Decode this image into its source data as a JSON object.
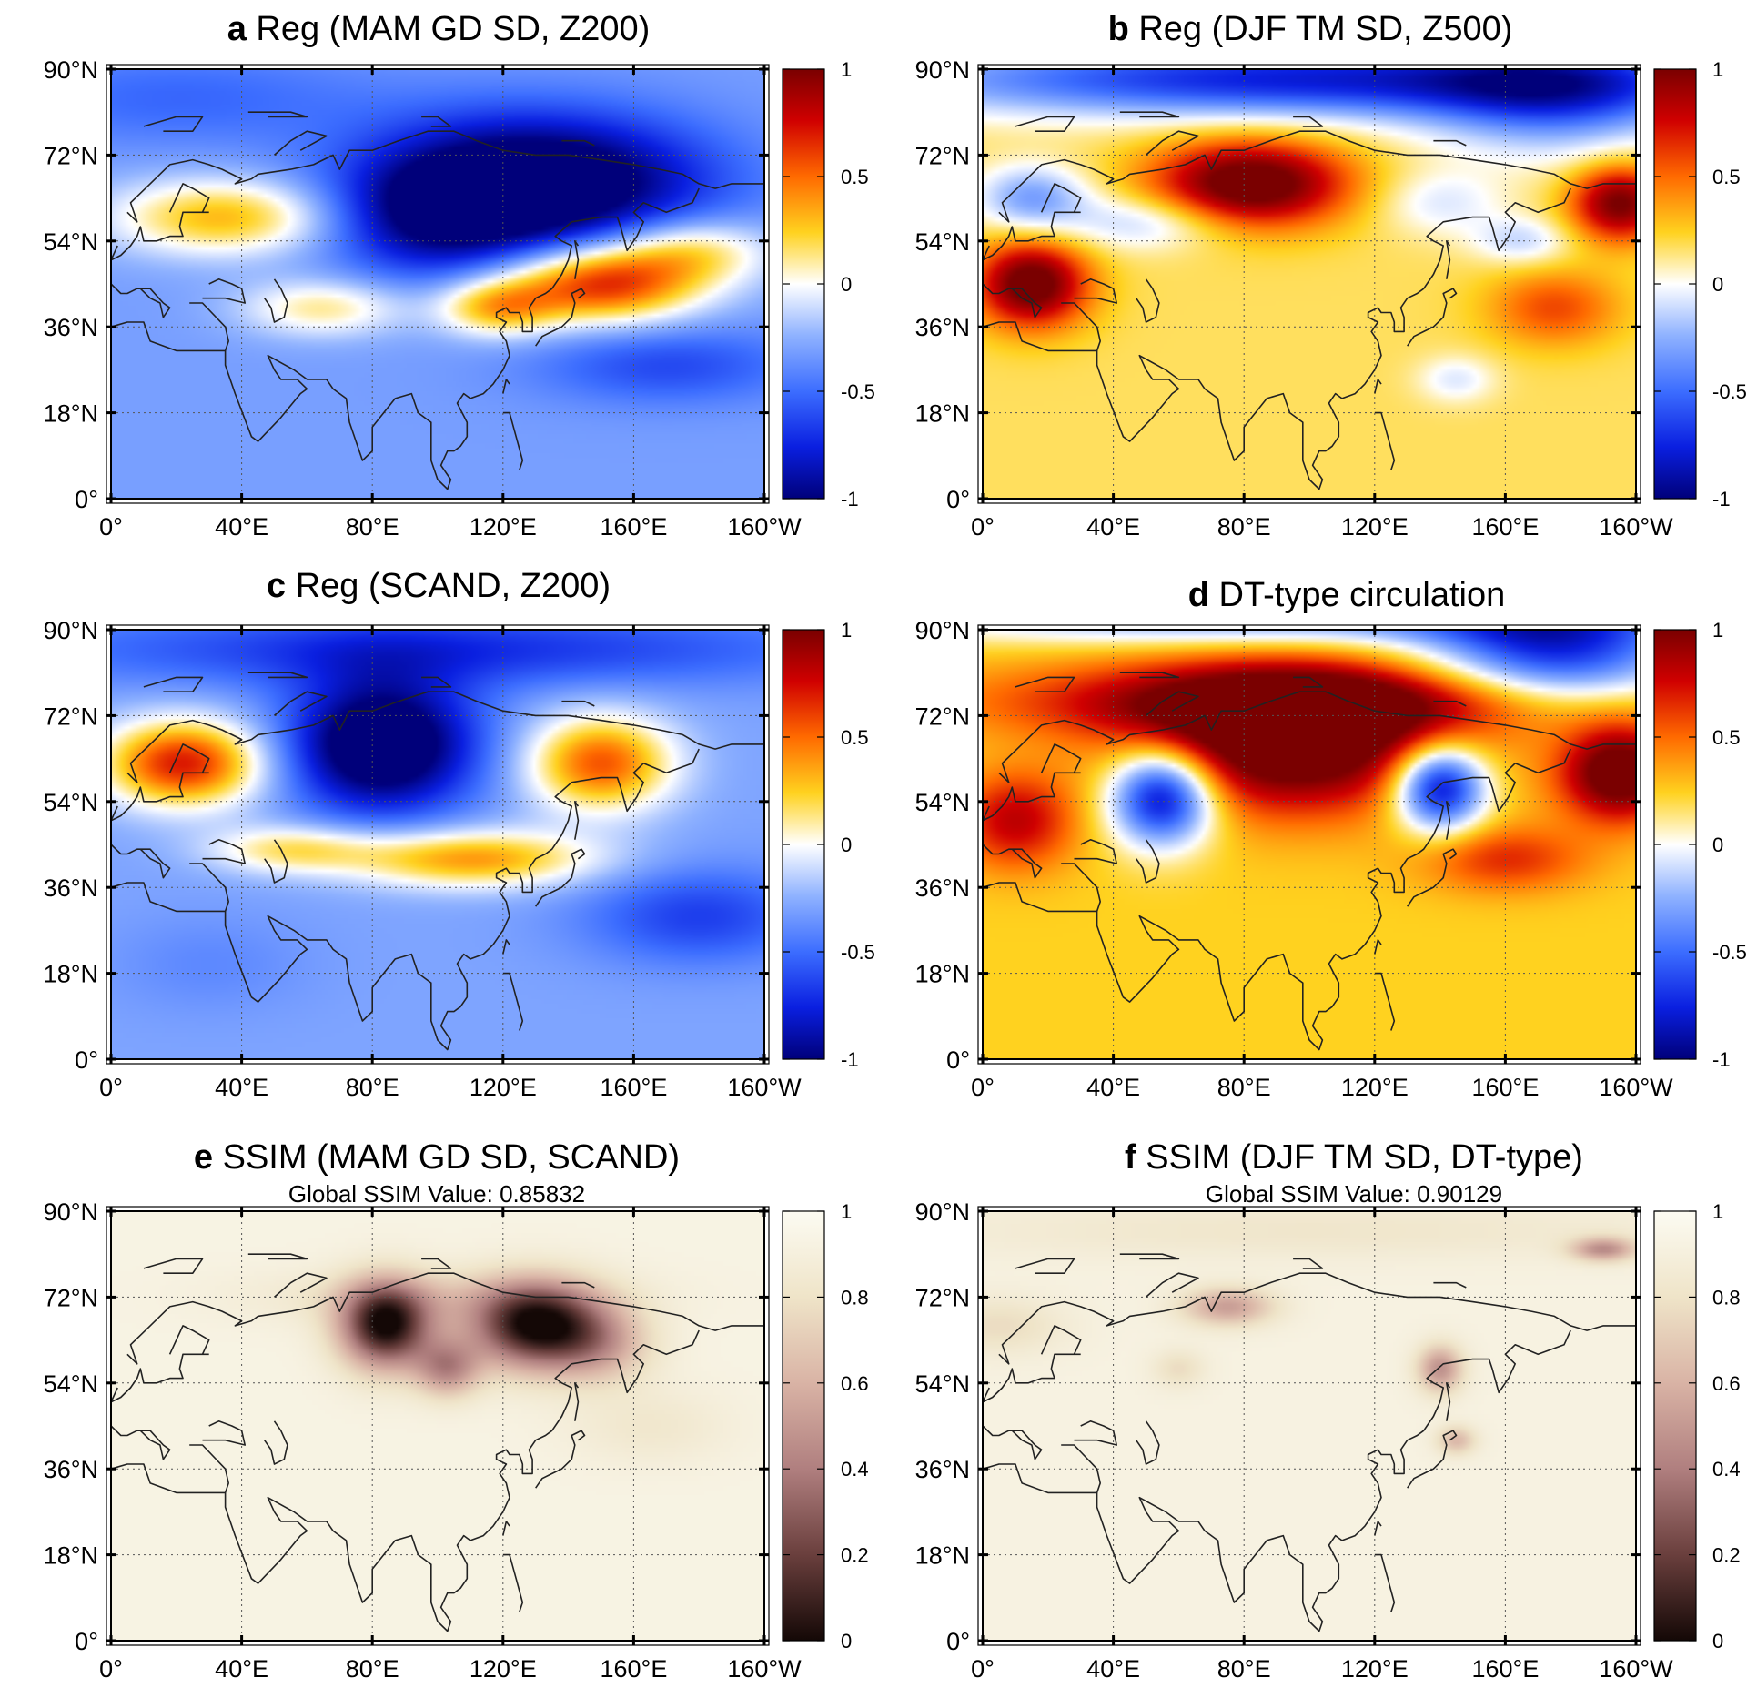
{
  "chart_data": [
    {
      "type": "heatmap",
      "panel": "a",
      "title": "Reg (MAM GD SD, Z200)",
      "subtitle": "",
      "colormap": "diverging-blue-white-red",
      "clim": [
        -1,
        1
      ],
      "colorbar_ticks": [
        "1",
        "0.5",
        "0",
        "-0.5",
        "-1"
      ],
      "colorbar_values": [
        1,
        0.5,
        0,
        -0.5,
        -1
      ],
      "x_ticks": [
        "0°",
        "40°E",
        "80°E",
        "120°E",
        "160°E",
        "160°W"
      ],
      "x_tick_values": [
        0,
        40,
        80,
        120,
        160,
        200
      ],
      "y_ticks": [
        "90°N",
        "72°N",
        "54°N",
        "36°N",
        "18°N",
        "0°"
      ],
      "y_tick_values": [
        90,
        72,
        54,
        36,
        18,
        0
      ],
      "xlim": [
        0,
        200
      ],
      "ylim": [
        0,
        90
      ],
      "background": -0.32,
      "features": [
        {
          "lon": 130,
          "lat": 66,
          "rx": 50,
          "ry": 14,
          "value": -1.0
        },
        {
          "lon": 98,
          "lat": 58,
          "rx": 32,
          "ry": 12,
          "value": -0.45
        },
        {
          "lon": 150,
          "lat": 45,
          "rx": 30,
          "ry": 8,
          "value": 1.0
        },
        {
          "lon": 118,
          "lat": 40,
          "rx": 18,
          "ry": 6,
          "value": 0.6
        },
        {
          "lon": 178,
          "lat": 52,
          "rx": 25,
          "ry": 7,
          "value": 0.5
        },
        {
          "lon": 35,
          "lat": 59,
          "rx": 35,
          "ry": 8,
          "value": 0.65
        },
        {
          "lon": 65,
          "lat": 40,
          "rx": 25,
          "ry": 6,
          "value": 0.45
        },
        {
          "lon": 170,
          "lat": 28,
          "rx": 40,
          "ry": 8,
          "value": -0.3
        },
        {
          "lon": 20,
          "lat": 84,
          "rx": 60,
          "ry": 10,
          "value": -0.2
        }
      ]
    },
    {
      "type": "heatmap",
      "panel": "b",
      "title": "Reg (DJF TM SD, Z500)",
      "subtitle": "",
      "colormap": "diverging-blue-white-red",
      "clim": [
        -1,
        1
      ],
      "colorbar_ticks": [
        "1",
        "0.5",
        "0",
        "-0.5",
        "-1"
      ],
      "colorbar_values": [
        1,
        0.5,
        0,
        -0.5,
        -1
      ],
      "x_ticks": [
        "0°",
        "40°E",
        "80°E",
        "120°E",
        "160°E",
        "160°W"
      ],
      "x_tick_values": [
        0,
        40,
        80,
        120,
        160,
        200
      ],
      "y_ticks": [
        "90°N",
        "72°N",
        "54°N",
        "36°N",
        "18°N",
        "0°"
      ],
      "y_tick_values": [
        90,
        72,
        54,
        36,
        18,
        0
      ],
      "xlim": [
        0,
        200
      ],
      "ylim": [
        0,
        90
      ],
      "background": 0.18,
      "features": [
        {
          "lon": 100,
          "lat": 88,
          "rx": 130,
          "ry": 8,
          "value": -0.95
        },
        {
          "lon": 175,
          "lat": 84,
          "rx": 40,
          "ry": 12,
          "value": -0.6
        },
        {
          "lon": 82,
          "lat": 66,
          "rx": 30,
          "ry": 9,
          "value": 1.0
        },
        {
          "lon": 15,
          "lat": 45,
          "rx": 17,
          "ry": 9,
          "value": 0.95
        },
        {
          "lon": 195,
          "lat": 62,
          "rx": 15,
          "ry": 8,
          "value": 0.85
        },
        {
          "lon": 15,
          "lat": 63,
          "rx": 17,
          "ry": 7,
          "value": -0.5
        },
        {
          "lon": 50,
          "lat": 58,
          "rx": 25,
          "ry": 6,
          "value": -0.35
        },
        {
          "lon": 140,
          "lat": 62,
          "rx": 20,
          "ry": 7,
          "value": -0.25
        },
        {
          "lon": 165,
          "lat": 54,
          "rx": 15,
          "ry": 5,
          "value": -0.3
        },
        {
          "lon": 145,
          "lat": 25,
          "rx": 12,
          "ry": 5,
          "value": -0.25
        },
        {
          "lon": 175,
          "lat": 40,
          "rx": 20,
          "ry": 8,
          "value": 0.4
        }
      ]
    },
    {
      "type": "heatmap",
      "panel": "c",
      "title": "Reg (SCAND, Z200)",
      "subtitle": "",
      "colormap": "diverging-blue-white-red",
      "clim": [
        -1,
        1
      ],
      "colorbar_ticks": [
        "1",
        "0.5",
        "0",
        "-0.5",
        "-1"
      ],
      "colorbar_values": [
        1,
        0.5,
        0,
        -0.5,
        -1
      ],
      "x_ticks": [
        "0°",
        "40°E",
        "80°E",
        "120°E",
        "160°E",
        "160°W"
      ],
      "x_tick_values": [
        0,
        40,
        80,
        120,
        160,
        200
      ],
      "y_ticks": [
        "90°N",
        "72°N",
        "54°N",
        "36°N",
        "18°N",
        "0°"
      ],
      "y_tick_values": [
        90,
        72,
        54,
        36,
        18,
        0
      ],
      "xlim": [
        0,
        200
      ],
      "ylim": [
        0,
        90
      ],
      "background": -0.3,
      "features": [
        {
          "lon": 83,
          "lat": 66,
          "rx": 28,
          "ry": 14,
          "value": -1.0
        },
        {
          "lon": 100,
          "lat": 86,
          "rx": 120,
          "ry": 8,
          "value": -0.4
        },
        {
          "lon": 22,
          "lat": 62,
          "rx": 24,
          "ry": 9,
          "value": 1.0
        },
        {
          "lon": 150,
          "lat": 62,
          "rx": 22,
          "ry": 10,
          "value": 0.85
        },
        {
          "lon": 110,
          "lat": 42,
          "rx": 38,
          "ry": 6,
          "value": 0.7
        },
        {
          "lon": 55,
          "lat": 44,
          "rx": 25,
          "ry": 5,
          "value": 0.45
        },
        {
          "lon": 180,
          "lat": 30,
          "rx": 35,
          "ry": 10,
          "value": -0.35
        },
        {
          "lon": 30,
          "lat": 20,
          "rx": 30,
          "ry": 10,
          "value": -0.1
        }
      ]
    },
    {
      "type": "heatmap",
      "panel": "d",
      "title": "DT-type circulation",
      "subtitle": "",
      "colormap": "diverging-blue-white-red",
      "clim": [
        -1,
        1
      ],
      "colorbar_ticks": [
        "1",
        "0.5",
        "0",
        "-0.5",
        "-1"
      ],
      "colorbar_values": [
        1,
        0.5,
        0,
        -0.5,
        -1
      ],
      "x_ticks": [
        "0°",
        "40°E",
        "80°E",
        "120°E",
        "160°E",
        "160°W"
      ],
      "x_tick_values": [
        0,
        40,
        80,
        120,
        160,
        200
      ],
      "y_ticks": [
        "90°N",
        "72°N",
        "54°N",
        "36°N",
        "18°N",
        "0°"
      ],
      "y_tick_values": [
        90,
        72,
        54,
        36,
        18,
        0
      ],
      "xlim": [
        0,
        200
      ],
      "ylim": [
        0,
        90
      ],
      "background": 0.25,
      "features": [
        {
          "lon": 95,
          "lat": 66,
          "rx": 45,
          "ry": 14,
          "value": 1.0
        },
        {
          "lon": 95,
          "lat": 75,
          "rx": 85,
          "ry": 8,
          "value": 0.75
        },
        {
          "lon": 55,
          "lat": 55,
          "rx": 16,
          "ry": 10,
          "value": -1.2
        },
        {
          "lon": 140,
          "lat": 57,
          "rx": 14,
          "ry": 9,
          "value": -1.2
        },
        {
          "lon": 175,
          "lat": 86,
          "rx": 40,
          "ry": 12,
          "value": -1.0
        },
        {
          "lon": 90,
          "lat": 92,
          "rx": 110,
          "ry": 5,
          "value": -0.6
        },
        {
          "lon": 195,
          "lat": 60,
          "rx": 18,
          "ry": 10,
          "value": 0.95
        },
        {
          "lon": 10,
          "lat": 50,
          "rx": 18,
          "ry": 10,
          "value": 0.55
        },
        {
          "lon": 160,
          "lat": 42,
          "rx": 25,
          "ry": 7,
          "value": 0.4
        }
      ]
    },
    {
      "type": "heatmap",
      "panel": "e",
      "title": "SSIM (MAM GD SD, SCAND)",
      "subtitle": "Global SSIM Value: 0.85832",
      "colormap": "sequential-dark-brown-to-white",
      "clim": [
        0,
        1
      ],
      "colorbar_ticks": [
        "1",
        "0.8",
        "0.6",
        "0.4",
        "0.2",
        "0"
      ],
      "colorbar_values": [
        1,
        0.8,
        0.6,
        0.4,
        0.2,
        0
      ],
      "x_ticks": [
        "0°",
        "40°E",
        "80°E",
        "120°E",
        "160°E",
        "160°W"
      ],
      "x_tick_values": [
        0,
        40,
        80,
        120,
        160,
        200
      ],
      "y_ticks": [
        "90°N",
        "72°N",
        "54°N",
        "36°N",
        "18°N",
        "0°"
      ],
      "y_tick_values": [
        90,
        72,
        54,
        36,
        18,
        0
      ],
      "xlim": [
        0,
        200
      ],
      "ylim": [
        0,
        90
      ],
      "background": 0.93,
      "features": [
        {
          "lon": 84,
          "lat": 66,
          "rx": 14,
          "ry": 9,
          "value": -0.93
        },
        {
          "lon": 130,
          "lat": 66,
          "rx": 20,
          "ry": 9,
          "value": -0.93
        },
        {
          "lon": 103,
          "lat": 57,
          "rx": 10,
          "ry": 6,
          "value": -0.45
        },
        {
          "lon": 150,
          "lat": 62,
          "rx": 16,
          "ry": 8,
          "value": -0.3
        },
        {
          "lon": 100,
          "lat": 72,
          "rx": 55,
          "ry": 6,
          "value": -0.15
        },
        {
          "lon": 165,
          "lat": 45,
          "rx": 25,
          "ry": 8,
          "value": -0.1
        }
      ]
    },
    {
      "type": "heatmap",
      "panel": "f",
      "title": "SSIM (DJF TM SD, DT-type)",
      "subtitle": "Global SSIM Value: 0.90129",
      "colormap": "sequential-dark-brown-to-white",
      "clim": [
        0,
        1
      ],
      "colorbar_ticks": [
        "1",
        "0.8",
        "0.6",
        "0.4",
        "0.2",
        "0"
      ],
      "colorbar_values": [
        1,
        0.8,
        0.6,
        0.4,
        0.2,
        0
      ],
      "x_ticks": [
        "0°",
        "40°E",
        "80°E",
        "120°E",
        "160°E",
        "160°W"
      ],
      "x_tick_values": [
        0,
        40,
        80,
        120,
        160,
        200
      ],
      "y_ticks": [
        "90°N",
        "72°N",
        "54°N",
        "36°N",
        "18°N",
        "0°"
      ],
      "y_tick_values": [
        90,
        72,
        54,
        36,
        18,
        0
      ],
      "xlim": [
        0,
        200
      ],
      "ylim": [
        0,
        90
      ],
      "background": 0.92,
      "features": [
        {
          "lon": 75,
          "lat": 70,
          "rx": 14,
          "ry": 4,
          "value": -0.4
        },
        {
          "lon": 140,
          "lat": 57,
          "rx": 7,
          "ry": 5,
          "value": -0.45
        },
        {
          "lon": 190,
          "lat": 82,
          "rx": 10,
          "ry": 2.5,
          "value": -0.45
        },
        {
          "lon": 145,
          "lat": 42,
          "rx": 6,
          "ry": 3,
          "value": -0.3
        },
        {
          "lon": 5,
          "lat": 66,
          "rx": 20,
          "ry": 6,
          "value": -0.15
        },
        {
          "lon": 100,
          "lat": 86,
          "rx": 120,
          "ry": 6,
          "value": -0.1
        },
        {
          "lon": 60,
          "lat": 57,
          "rx": 8,
          "ry": 4,
          "value": -0.15
        }
      ]
    }
  ]
}
